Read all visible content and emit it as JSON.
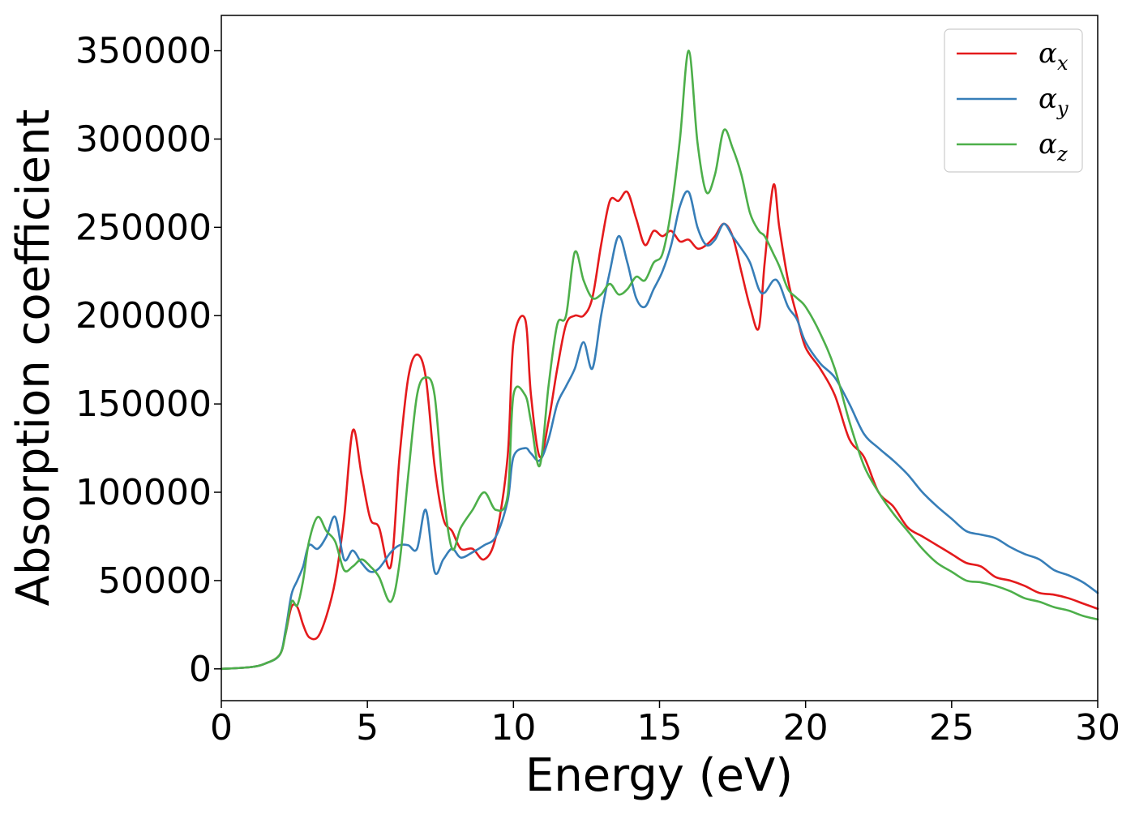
{
  "chart_data": {
    "type": "line",
    "xlabel": "Energy (eV)",
    "ylabel": "Absorption coefficient",
    "xlim": [
      0,
      30
    ],
    "ylim": [
      -18000,
      370000
    ],
    "xticks": [
      0,
      5,
      10,
      15,
      20,
      25,
      30
    ],
    "yticks": [
      0,
      50000,
      100000,
      150000,
      200000,
      250000,
      300000,
      350000
    ],
    "grid": false,
    "legend_position": "top-right",
    "series": [
      {
        "name": "αx",
        "symbol": "α",
        "subscript": "x",
        "color": "#e41a1c",
        "x": [
          0,
          1.0,
          1.5,
          2.0,
          2.2,
          2.4,
          2.6,
          2.8,
          3.0,
          3.3,
          3.6,
          3.9,
          4.2,
          4.5,
          4.8,
          5.1,
          5.4,
          5.8,
          6.1,
          6.4,
          6.7,
          7.0,
          7.3,
          7.6,
          7.9,
          8.2,
          8.6,
          9.0,
          9.4,
          9.8,
          10.0,
          10.4,
          10.6,
          10.9,
          11.2,
          11.5,
          11.8,
          12.1,
          12.4,
          12.7,
          13.0,
          13.3,
          13.6,
          13.9,
          14.2,
          14.5,
          14.8,
          15.1,
          15.4,
          15.7,
          16.0,
          16.3,
          16.6,
          16.9,
          17.2,
          17.5,
          17.8,
          18.1,
          18.4,
          18.6,
          18.9,
          19.1,
          19.4,
          19.7,
          20.0,
          20.5,
          21.0,
          21.5,
          22.0,
          22.5,
          23.0,
          23.5,
          24.0,
          24.5,
          25.0,
          25.5,
          26.0,
          26.5,
          27.0,
          27.5,
          28.0,
          28.5,
          29.0,
          29.5,
          30.0
        ],
        "y": [
          0,
          1000,
          3000,
          8000,
          20000,
          35000,
          35000,
          25000,
          18000,
          18000,
          30000,
          50000,
          85000,
          135000,
          110000,
          85000,
          80000,
          58000,
          120000,
          165000,
          178000,
          165000,
          115000,
          85000,
          78000,
          68000,
          68000,
          62000,
          75000,
          120000,
          185000,
          198000,
          155000,
          120000,
          140000,
          170000,
          195000,
          200000,
          200000,
          210000,
          240000,
          265000,
          265000,
          270000,
          255000,
          240000,
          248000,
          245000,
          248000,
          242000,
          243000,
          238000,
          240000,
          245000,
          252000,
          245000,
          225000,
          205000,
          193000,
          230000,
          274000,
          250000,
          220000,
          200000,
          182000,
          170000,
          155000,
          130000,
          120000,
          100000,
          92000,
          80000,
          75000,
          70000,
          65000,
          60000,
          58000,
          52000,
          50000,
          47000,
          43000,
          42000,
          40000,
          37000,
          34000
        ]
      },
      {
        "name": "αy",
        "symbol": "α",
        "subscript": "y",
        "color": "#377eb8",
        "x": [
          0,
          1.0,
          1.5,
          2.0,
          2.2,
          2.4,
          2.6,
          2.8,
          3.0,
          3.3,
          3.6,
          3.9,
          4.2,
          4.5,
          4.8,
          5.1,
          5.4,
          5.8,
          6.1,
          6.4,
          6.7,
          7.0,
          7.3,
          7.6,
          7.9,
          8.2,
          8.6,
          9.0,
          9.4,
          9.8,
          10.0,
          10.4,
          10.6,
          10.9,
          11.2,
          11.5,
          11.8,
          12.1,
          12.4,
          12.7,
          13.0,
          13.3,
          13.6,
          13.9,
          14.2,
          14.5,
          14.8,
          15.1,
          15.4,
          15.7,
          16.0,
          16.3,
          16.6,
          16.9,
          17.2,
          17.5,
          17.8,
          18.1,
          18.4,
          18.6,
          18.9,
          19.1,
          19.4,
          19.7,
          20.0,
          20.5,
          21.0,
          21.5,
          22.0,
          22.5,
          23.0,
          23.5,
          24.0,
          24.5,
          25.0,
          25.5,
          26.0,
          26.5,
          27.0,
          27.5,
          28.0,
          28.5,
          29.0,
          29.5,
          30.0
        ],
        "y": [
          0,
          1000,
          3000,
          8000,
          22000,
          42000,
          50000,
          58000,
          70000,
          68000,
          75000,
          86000,
          62000,
          67000,
          60000,
          55000,
          57000,
          66000,
          70000,
          70000,
          68000,
          90000,
          55000,
          62000,
          68000,
          63000,
          66000,
          70000,
          75000,
          95000,
          120000,
          125000,
          122000,
          118000,
          130000,
          150000,
          160000,
          170000,
          185000,
          170000,
          200000,
          225000,
          245000,
          230000,
          210000,
          205000,
          215000,
          225000,
          240000,
          262000,
          270000,
          250000,
          240000,
          243000,
          252000,
          245000,
          238000,
          230000,
          215000,
          213000,
          220000,
          218000,
          205000,
          198000,
          185000,
          173000,
          165000,
          150000,
          133000,
          125000,
          118000,
          110000,
          100000,
          92000,
          85000,
          78000,
          76000,
          74000,
          69000,
          65000,
          62000,
          56000,
          53000,
          49000,
          43000
        ]
      },
      {
        "name": "αz",
        "symbol": "α",
        "subscript": "z",
        "color": "#4daf4a",
        "x": [
          0,
          1.0,
          1.5,
          2.0,
          2.2,
          2.4,
          2.6,
          2.8,
          3.0,
          3.3,
          3.6,
          3.9,
          4.2,
          4.5,
          4.8,
          5.1,
          5.4,
          5.8,
          6.1,
          6.4,
          6.7,
          7.0,
          7.3,
          7.6,
          7.9,
          8.2,
          8.6,
          9.0,
          9.4,
          9.8,
          10.0,
          10.4,
          10.6,
          10.9,
          11.2,
          11.5,
          11.8,
          12.1,
          12.4,
          12.7,
          13.0,
          13.3,
          13.6,
          13.9,
          14.2,
          14.5,
          14.8,
          15.1,
          15.4,
          15.7,
          16.0,
          16.3,
          16.6,
          16.9,
          17.2,
          17.5,
          17.8,
          18.1,
          18.4,
          18.6,
          18.9,
          19.1,
          19.4,
          19.7,
          20.0,
          20.5,
          21.0,
          21.5,
          22.0,
          22.5,
          23.0,
          23.5,
          24.0,
          24.5,
          25.0,
          25.5,
          26.0,
          26.5,
          27.0,
          27.5,
          28.0,
          28.5,
          29.0,
          29.5,
          30.0
        ],
        "y": [
          0,
          1000,
          3000,
          8000,
          20000,
          38000,
          36000,
          50000,
          72000,
          86000,
          78000,
          72000,
          56000,
          58000,
          62000,
          58000,
          52000,
          38000,
          60000,
          110000,
          155000,
          165000,
          155000,
          100000,
          68000,
          80000,
          90000,
          100000,
          90000,
          98000,
          155000,
          155000,
          140000,
          115000,
          160000,
          195000,
          200000,
          236000,
          220000,
          210000,
          212000,
          218000,
          212000,
          215000,
          222000,
          220000,
          230000,
          235000,
          260000,
          300000,
          350000,
          298000,
          270000,
          280000,
          305000,
          295000,
          280000,
          258000,
          248000,
          245000,
          235000,
          228000,
          215000,
          210000,
          205000,
          190000,
          170000,
          140000,
          115000,
          100000,
          88000,
          78000,
          68000,
          60000,
          55000,
          50000,
          49000,
          47000,
          44000,
          40000,
          38000,
          35000,
          33000,
          30000,
          28000
        ]
      }
    ]
  }
}
